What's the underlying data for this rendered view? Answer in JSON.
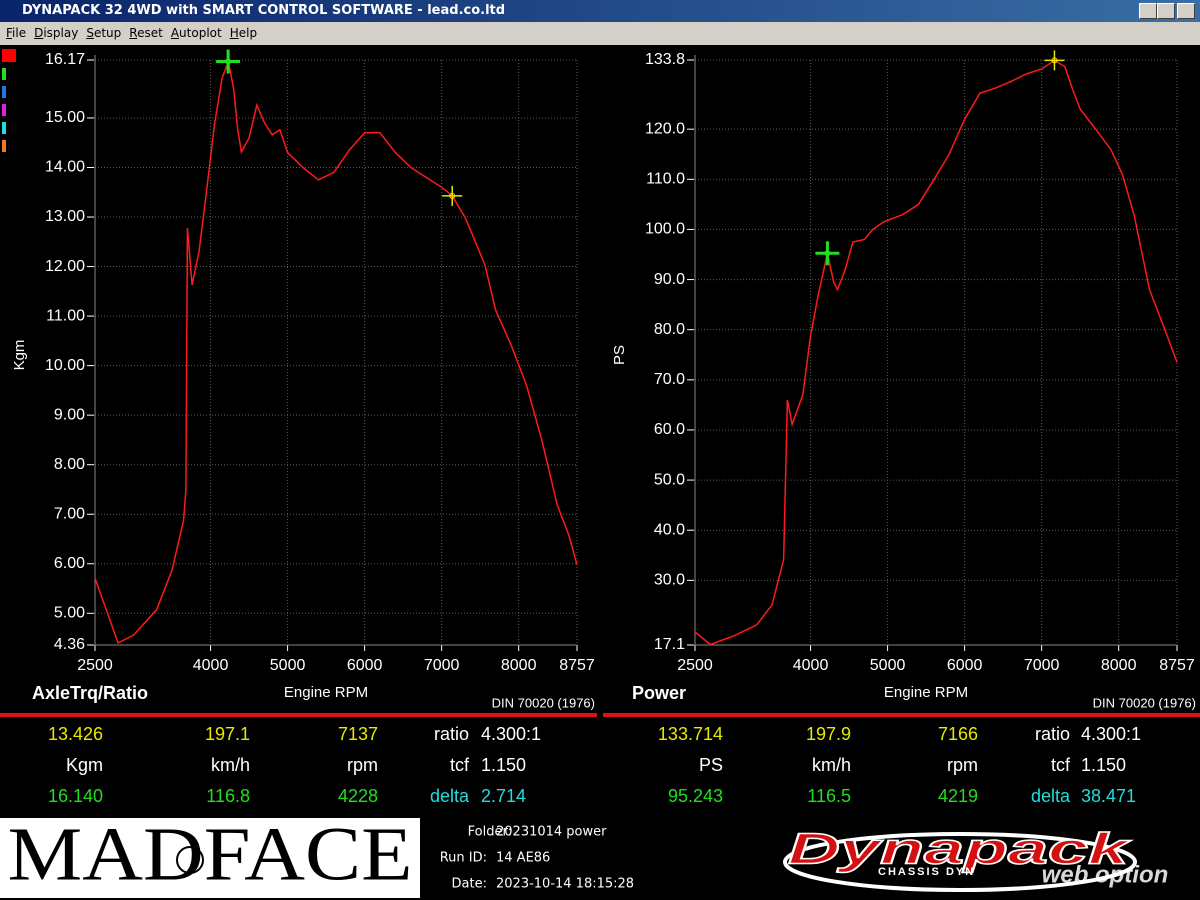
{
  "window": {
    "title": "DYNAPACK 32 4WD with SMART CONTROL SOFTWARE - lead.co.ltd"
  },
  "menu": [
    "File",
    "Display",
    "Setup",
    "Reset",
    "Autoplot",
    "Help"
  ],
  "chart_data": [
    {
      "type": "line",
      "title": "AxleTrq/Ratio",
      "x_label": "Engine RPM",
      "y_label": "Kgm",
      "note": "DIN 70020 (1976)",
      "xlim": [
        2500,
        8757
      ],
      "ylim": [
        4.36,
        16.17
      ],
      "grid": true,
      "xticks": [
        2500,
        4000,
        5000,
        6000,
        7000,
        8000,
        8757
      ],
      "yticks": [
        4.36,
        {
          "value": 5,
          "label": "5.00"
        },
        {
          "value": 6,
          "label": "6.00"
        },
        {
          "value": 7,
          "label": "7.00"
        },
        {
          "value": 8,
          "label": "8.00"
        },
        {
          "value": 9,
          "label": "9.00"
        },
        {
          "value": 10,
          "label": "10.00"
        },
        {
          "value": 11,
          "label": "11.00"
        },
        {
          "value": 12,
          "label": "12.00"
        },
        {
          "value": 13,
          "label": "13.00"
        },
        {
          "value": 14,
          "label": "14.00"
        },
        {
          "value": 15,
          "label": "15.00"
        },
        16.17
      ],
      "x": [
        2500,
        2800,
        3000,
        3300,
        3500,
        3650,
        3680,
        3700,
        3760,
        3850,
        3950,
        4050,
        4150,
        4230,
        4300,
        4350,
        4400,
        4500,
        4600,
        4700,
        4800,
        4900,
        5000,
        5200,
        5400,
        5600,
        5800,
        6000,
        6200,
        6400,
        6600,
        6800,
        7000,
        7137,
        7300,
        7400,
        7563,
        7700,
        7900,
        8100,
        8300,
        8500,
        8650,
        8757
      ],
      "series": [
        {
          "color": "#ff1a1a",
          "values": [
            5.71,
            4.4,
            4.56,
            5.07,
            5.87,
            6.88,
            7.5,
            12.78,
            11.63,
            12.3,
            13.55,
            14.86,
            15.8,
            16.14,
            15.58,
            14.8,
            14.31,
            14.6,
            15.26,
            14.9,
            14.66,
            14.76,
            14.3,
            14.0,
            13.75,
            13.9,
            14.35,
            14.7,
            14.7,
            14.3,
            14.0,
            13.8,
            13.6,
            13.43,
            13.0,
            12.64,
            12.03,
            11.12,
            10.42,
            9.61,
            8.5,
            7.19,
            6.58,
            5.98
          ]
        }
      ],
      "readout": {
        "units": [
          "Kgm",
          "km/h",
          "rpm"
        ],
        "rows": [
          {
            "color": "#e8e800",
            "values": [
              13.426,
              197.1,
              7137
            ]
          },
          {
            "color": "#22dd22",
            "values": [
              {
                "value": 16.14,
                "label": "16.140"
              },
              116.8,
              4228
            ]
          }
        ],
        "ratio_label": "ratio",
        "ratio": "4.300:1",
        "tcf_label": "tcf",
        "tcf": "1.150",
        "delta_label": "delta",
        "delta": 2.714
      }
    },
    {
      "type": "line",
      "title": "Power",
      "x_label": "Engine RPM",
      "y_label": "PS",
      "note": "DIN 70020 (1976)",
      "xlim": [
        2500,
        8757
      ],
      "ylim": [
        17.1,
        133.8
      ],
      "grid": true,
      "xticks": [
        2500,
        4000,
        5000,
        6000,
        7000,
        8000,
        8757
      ],
      "yticks": [
        17.1,
        {
          "value": 30,
          "label": "30.0"
        },
        {
          "value": 40,
          "label": "40.0"
        },
        {
          "value": 50,
          "label": "50.0"
        },
        {
          "value": 60,
          "label": "60.0"
        },
        {
          "value": 70,
          "label": "70.0"
        },
        {
          "value": 80,
          "label": "80.0"
        },
        {
          "value": 90,
          "label": "90.0"
        },
        {
          "value": 100,
          "label": "100.0"
        },
        {
          "value": 110,
          "label": "110.0"
        },
        {
          "value": 120,
          "label": "120.0"
        },
        133.8
      ],
      "x": [
        2500,
        2700,
        3000,
        3300,
        3500,
        3650,
        3700,
        3760,
        3900,
        4000,
        4100,
        4219,
        4300,
        4350,
        4450,
        4550,
        4700,
        4800,
        4950,
        5200,
        5400,
        5600,
        5800,
        6000,
        6200,
        6400,
        6600,
        6800,
        7000,
        7166,
        7300,
        7400,
        7500,
        7700,
        7900,
        8050,
        8200,
        8400,
        8600,
        8757
      ],
      "series": [
        {
          "color": "#ff1a1a",
          "values": [
            19.7,
            17.2,
            18.9,
            21.1,
            25.1,
            34.1,
            66,
            61.1,
            67,
            78.9,
            87,
            95.2,
            89.5,
            88,
            92,
            97.5,
            98,
            99.9,
            101.5,
            103,
            105,
            109.9,
            115,
            122,
            127.2,
            128.2,
            129.5,
            131,
            132,
            133.7,
            132.5,
            128,
            124,
            120,
            115.9,
            110.9,
            102.9,
            88,
            80,
            73.5
          ]
        }
      ],
      "readout": {
        "units": [
          "PS",
          "km/h",
          "rpm"
        ],
        "rows": [
          {
            "color": "#e8e800",
            "values": [
              133.714,
              197.9,
              7166
            ]
          },
          {
            "color": "#22dd22",
            "values": [
              95.243,
              116.5,
              4219
            ]
          }
        ],
        "ratio_label": "ratio",
        "ratio": "4.300:1",
        "tcf_label": "tcf",
        "tcf": "1.150",
        "delta_label": "delta",
        "delta": 38.471
      }
    }
  ],
  "footer": {
    "folder_label": "Folder:",
    "folder": "20231014 power",
    "run_label": "Run ID:",
    "run": "14 AE86",
    "date_label": "Date:",
    "date": "2023-10-14 18:15:28",
    "logo_left": "MADFACE",
    "logo_right": "Dynapack",
    "logo_right_sub": "CHASSIS DYN",
    "watermark": "web option"
  }
}
